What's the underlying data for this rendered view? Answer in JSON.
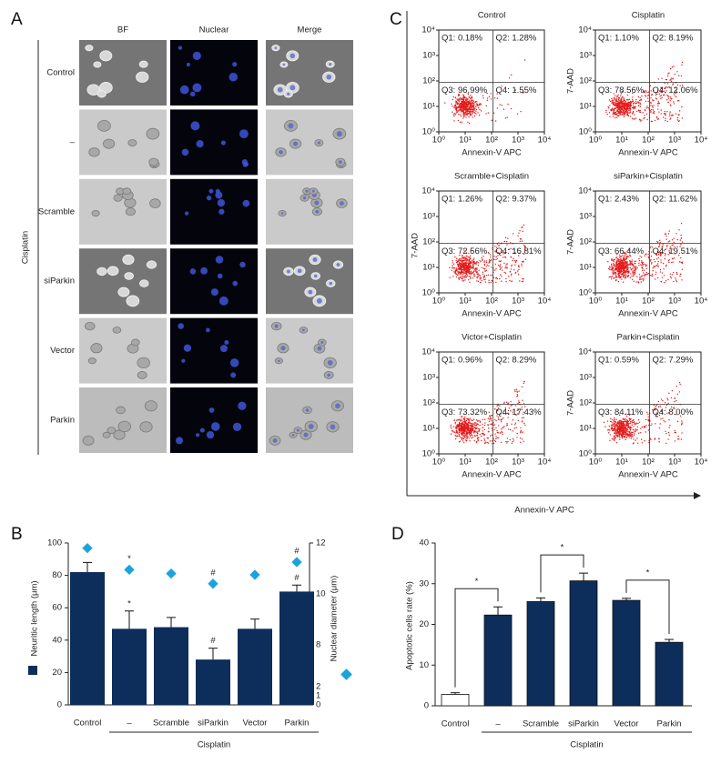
{
  "panel_a": {
    "label": "A",
    "columns": [
      "BF",
      "Nuclear",
      "Merge"
    ],
    "rows": [
      "Control",
      "–",
      "Scramble",
      "siParkin",
      "Vector",
      "Parkin"
    ],
    "group": "Cisplatin"
  },
  "panel_c": {
    "label": "C",
    "axis_ticks": [
      "10⁰",
      "10¹",
      "10²",
      "10³",
      "10⁴"
    ],
    "x_label": "Annexin-V APC",
    "y_label": "7-AAD",
    "plots": [
      {
        "title": "Control",
        "quadrants": [
          "Q1: 0.18%",
          "Q2: 1.28%",
          "Q3: 96.99%",
          "Q4: 1.55%"
        ]
      },
      {
        "title": "Cisplatin",
        "quadrants": [
          "Q1: 1.10%",
          "Q2: 8.19%",
          "Q3: 78.56%",
          "Q4: 12.06%"
        ]
      },
      {
        "title": "Scramble+Cisplatin",
        "quadrants": [
          "Q1: 1.26%",
          "Q2: 9.37%",
          "Q3: 72.56%",
          "Q4: 16.81%"
        ]
      },
      {
        "title": "siParkin+Cisplatin",
        "quadrants": [
          "Q1: 2.43%",
          "Q2: 11.62%",
          "Q3: 66.44%",
          "Q4: 19.51%"
        ]
      },
      {
        "title": "Victor+Cisplatin",
        "quadrants": [
          "Q1: 0.96%",
          "Q2: 8.29%",
          "Q3: 73.32%",
          "Q4: 17.43%"
        ]
      },
      {
        "title": "Parkin+Cisplatin",
        "quadrants": [
          "Q1: 0.59%",
          "Q2: 7.29%",
          "Q3: 84.11%",
          "Q4: 8.00%"
        ]
      }
    ]
  },
  "chart_data": [
    {
      "type": "bar",
      "label": "B",
      "categories": [
        "Control",
        "–",
        "Scramble",
        "siParkin",
        "Vector",
        "Parkin"
      ],
      "group_label": "Cisplatin",
      "ylabel": "Neuritic length (μm)",
      "y2label": "Nuclear diameter (μm)",
      "ylim": [
        0,
        100
      ],
      "yticks": [
        0,
        20,
        40,
        60,
        80,
        100
      ],
      "y2lim": [
        0,
        12
      ],
      "y2ticks": [
        0,
        1,
        2,
        8,
        10,
        12
      ],
      "series": [
        {
          "color": "#0d2d5a",
          "values": [
            82,
            47,
            48,
            28,
            47,
            70
          ],
          "errors": [
            6,
            11,
            6,
            7,
            6,
            4
          ],
          "annotations": [
            null,
            "*",
            null,
            "#",
            null,
            "#"
          ]
        },
        {
          "axis": "y2",
          "color": "#1ba3de",
          "values": [
            11.8,
            10.95,
            10.8,
            10.4,
            10.75,
            11.25
          ],
          "annotations": [
            null,
            "*",
            null,
            "#",
            null,
            "#"
          ]
        }
      ]
    },
    {
      "type": "bar",
      "label": "D",
      "categories": [
        "Control",
        "–",
        "Scramble",
        "siParkin",
        "Vector",
        "Parkin"
      ],
      "group_label": "Cisplatin",
      "ylabel": "Apoptotic cells rate (%)",
      "ylim": [
        0,
        40
      ],
      "yticks": [
        0,
        10,
        20,
        30,
        40
      ],
      "colors": [
        "#ffffff",
        "#0d2d5a",
        "#0d2d5a",
        "#0d2d5a",
        "#0d2d5a",
        "#0d2d5a"
      ],
      "values": [
        2.8,
        22.3,
        25.6,
        30.7,
        25.9,
        15.6
      ],
      "errors": [
        0.4,
        2.0,
        0.9,
        1.9,
        0.5,
        0.7
      ],
      "significance": [
        "*",
        "*",
        "*"
      ]
    }
  ]
}
